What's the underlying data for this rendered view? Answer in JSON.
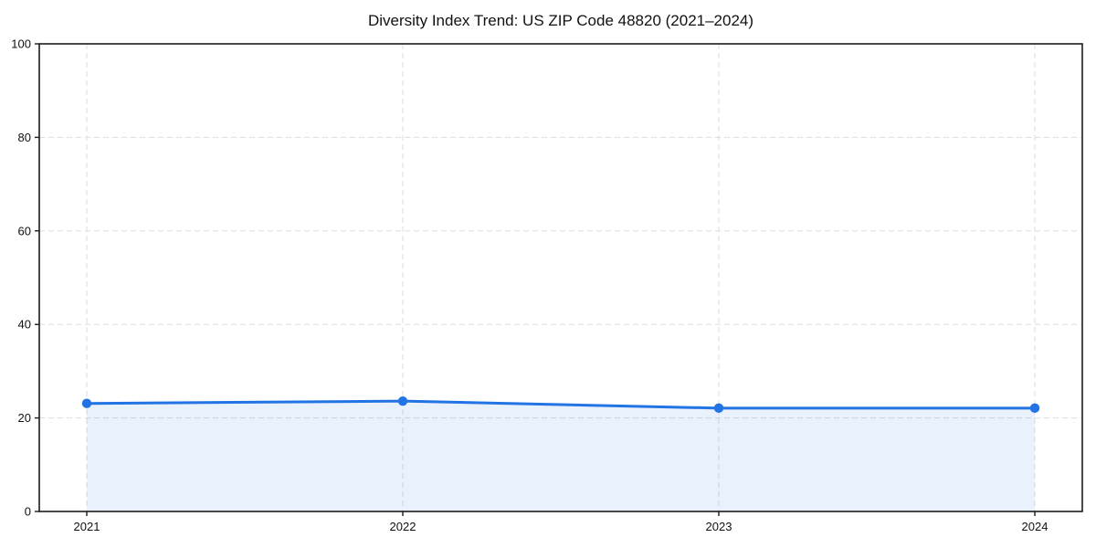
{
  "page": {
    "background": "#ffffff"
  },
  "chart_data": {
    "type": "area",
    "title": "Diversity Index Trend: US ZIP Code 48820 (2021–2024)",
    "x": [
      "2021",
      "2022",
      "2023",
      "2024"
    ],
    "series": [
      {
        "name": "Diversity Index",
        "values": [
          23.1,
          23.6,
          22.1,
          22.1
        ]
      }
    ],
    "xlabel": "",
    "ylabel": "",
    "ylim": [
      0,
      100
    ],
    "yticks": [
      0,
      20,
      40,
      60,
      80,
      100
    ],
    "grid": true,
    "grid_style": "dashed",
    "legend": "none",
    "marker": "circle",
    "colors": {
      "line": "#2273e3",
      "marker": "#2273e3",
      "fill": "#2273e3",
      "fill_opacity": 0.1,
      "grid": "#e0e0e0",
      "axis": "#1c1c1c",
      "text": "#111111",
      "background": "#ffffff"
    }
  }
}
